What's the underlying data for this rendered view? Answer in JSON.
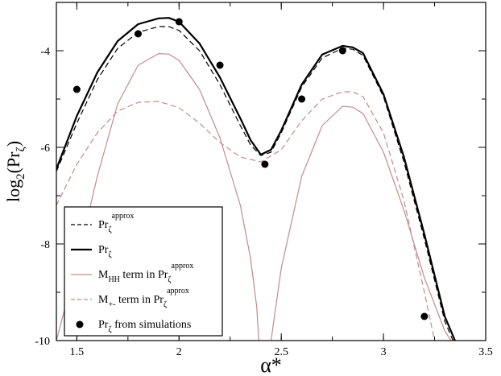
{
  "chart_data": {
    "type": "line",
    "xlabel": "α*",
    "ylabel": {
      "base": "log",
      "sub": "2",
      "inner": "(Pr",
      "sub2": "ζ",
      "close": ")"
    },
    "xlim": [
      1.4,
      3.5
    ],
    "ylim": [
      -10,
      -3
    ],
    "xticks": [
      1.5,
      2,
      2.5,
      3,
      3.5
    ],
    "xtick_labels": [
      "1.5",
      "2",
      "2.5",
      "3",
      "3.5"
    ],
    "yticks": [
      -4,
      -6,
      -8,
      -10
    ],
    "ytick_labels": [
      "-4",
      "-6",
      "-8",
      "-10"
    ],
    "legend_position": "bottom-left",
    "series": [
      {
        "key": "pr_approx",
        "legend": {
          "main": "Pr",
          "sub": "ζ",
          "sup": "approx",
          "tail": ""
        },
        "style": "dashed",
        "color": "#000000",
        "width": 1.2,
        "x": [
          1.4,
          1.5,
          1.6,
          1.7,
          1.8,
          1.9,
          1.95,
          2.0,
          2.1,
          2.2,
          2.3,
          2.35,
          2.4,
          2.45,
          2.5,
          2.6,
          2.7,
          2.8,
          2.85,
          2.9,
          3.0,
          3.1,
          3.2,
          3.3,
          3.34
        ],
        "y": [
          -6.5,
          -5.5,
          -4.6,
          -3.95,
          -3.62,
          -3.5,
          -3.5,
          -3.58,
          -4.0,
          -4.7,
          -5.55,
          -5.95,
          -6.17,
          -6.1,
          -5.7,
          -4.75,
          -4.15,
          -3.95,
          -3.97,
          -4.1,
          -4.95,
          -6.3,
          -7.9,
          -9.6,
          -10.0
        ]
      },
      {
        "key": "pr_exact",
        "legend": {
          "main": "Pr",
          "sub": "ζ",
          "sup": "",
          "tail": ""
        },
        "style": "solid",
        "color": "#000000",
        "width": 2.2,
        "x": [
          1.4,
          1.5,
          1.6,
          1.7,
          1.8,
          1.9,
          1.95,
          2.0,
          2.1,
          2.2,
          2.3,
          2.35,
          2.4,
          2.45,
          2.5,
          2.6,
          2.7,
          2.8,
          2.85,
          2.9,
          3.0,
          3.1,
          3.2,
          3.3,
          3.35
        ],
        "y": [
          -6.45,
          -5.35,
          -4.45,
          -3.8,
          -3.45,
          -3.33,
          -3.32,
          -3.4,
          -3.85,
          -4.55,
          -5.4,
          -5.85,
          -6.15,
          -6.05,
          -5.65,
          -4.7,
          -4.08,
          -3.9,
          -3.93,
          -4.05,
          -4.9,
          -6.2,
          -7.8,
          -9.5,
          -10.0
        ]
      },
      {
        "key": "m_hh",
        "legend": {
          "main": "M",
          "sub": "HH",
          "sup": "",
          "tail": " term in Pr",
          "sub2": "ζ",
          "sup2": "approx"
        },
        "style": "solid",
        "color": "#c58a8a",
        "width": 1.2,
        "x": [
          1.4,
          1.5,
          1.6,
          1.7,
          1.8,
          1.9,
          1.95,
          2.0,
          2.1,
          2.2,
          2.3,
          2.35,
          2.38,
          2.39
        ],
        "y": [
          -10.0,
          -8.4,
          -6.6,
          -5.1,
          -4.3,
          -4.06,
          -4.07,
          -4.2,
          -4.8,
          -5.8,
          -7.2,
          -8.3,
          -9.3,
          -10.0
        ],
        "x2": [
          2.45,
          2.5,
          2.6,
          2.7,
          2.8,
          2.85,
          2.9,
          3.0,
          3.1,
          3.2,
          3.3,
          3.33
        ],
        "y2": [
          -10.0,
          -8.5,
          -6.6,
          -5.55,
          -5.15,
          -5.17,
          -5.3,
          -6.1,
          -7.3,
          -8.7,
          -9.8,
          -10.0
        ]
      },
      {
        "key": "m_pm",
        "legend": {
          "main": "M",
          "sub": "+-",
          "sup": "",
          "tail": " term in Pr",
          "sub2": "ζ",
          "sup2": "approx"
        },
        "style": "dashed",
        "color": "#c58a8a",
        "width": 1.2,
        "x": [
          1.4,
          1.5,
          1.6,
          1.7,
          1.8,
          1.9,
          2.0,
          2.1,
          2.2,
          2.3,
          2.4,
          2.5,
          2.6,
          2.7,
          2.8,
          2.85,
          2.9,
          3.0,
          3.1,
          3.2,
          3.25
        ],
        "y": [
          -7.2,
          -6.35,
          -5.7,
          -5.25,
          -5.07,
          -5.05,
          -5.18,
          -5.5,
          -5.9,
          -6.2,
          -6.3,
          -6.05,
          -5.45,
          -5.0,
          -4.85,
          -4.85,
          -4.95,
          -5.7,
          -7.1,
          -9.0,
          -10.0
        ]
      },
      {
        "key": "sim",
        "legend": {
          "main": "Pr",
          "sub": "ζ",
          "sup": "",
          "tail": " from simulations"
        },
        "style": "points",
        "color": "#000000",
        "x": [
          1.5,
          1.8,
          2.0,
          2.2,
          2.42,
          2.6,
          2.8,
          3.2
        ],
        "y": [
          -4.8,
          -3.65,
          -3.4,
          -4.3,
          -6.35,
          -5.0,
          -4.0,
          -9.5
        ]
      }
    ]
  }
}
